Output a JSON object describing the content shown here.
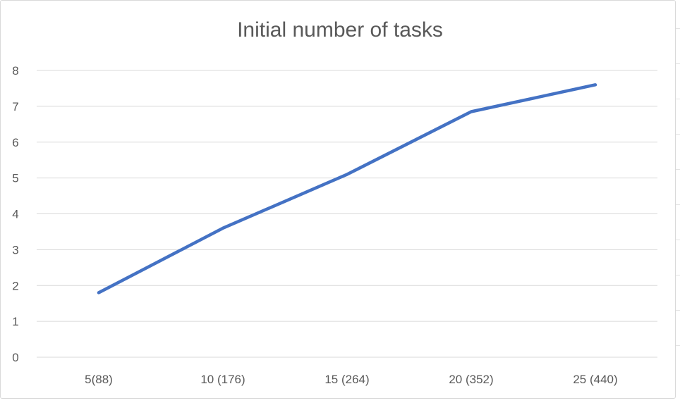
{
  "chart_data": {
    "type": "line",
    "title": "Initial number of tasks",
    "xlabel": "",
    "ylabel": "",
    "categories": [
      "5(88)",
      "10 (176)",
      "15 (264)",
      "20 (352)",
      "25 (440)"
    ],
    "series": [
      {
        "values": [
          1.8,
          3.6,
          5.1,
          6.85,
          7.6
        ],
        "color": "#4472c4"
      }
    ],
    "ylim": [
      0,
      8
    ],
    "yticks": [
      "0",
      "1",
      "2",
      "3",
      "4",
      "5",
      "6",
      "7",
      "8"
    ],
    "grid": true,
    "gridColor": "#d9d9d9",
    "legend": "none"
  }
}
